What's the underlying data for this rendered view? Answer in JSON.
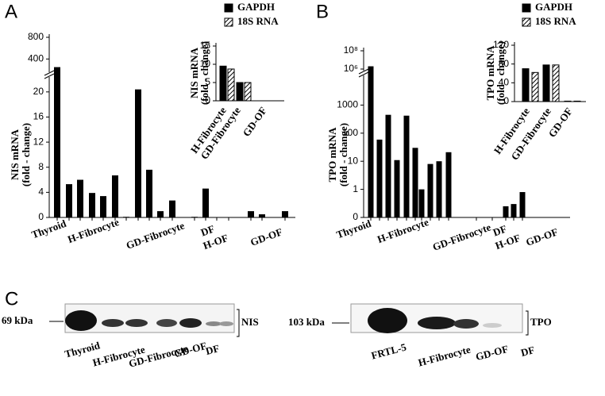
{
  "chart_data": [
    {
      "panel": "A",
      "type": "bar",
      "y_label": [
        "NIS mRNA",
        "(fold - change)"
      ],
      "groups": [
        "Thyroid",
        "H-Fibrocyte",
        "GD-Fibrocyte",
        "DF",
        "H-OF",
        "GD-OF"
      ],
      "color": "#000000",
      "values": [
        250,
        5.3,
        6,
        3.9,
        3.4,
        6.7,
        0.1,
        20.4,
        7.6,
        1,
        2.7,
        0.1,
        4.6,
        0,
        0,
        1,
        0.5,
        1
      ],
      "ylim": [
        0,
        800
      ],
      "axis_break": [
        22,
        200
      ],
      "yticks": [
        0,
        4,
        8,
        12,
        16,
        20,
        400,
        800
      ]
    },
    {
      "panel": null,
      "type": "bar",
      "y_label": [
        "NIS mRNA",
        "(fold - change)"
      ],
      "categories": [
        "H-Fibrocyte",
        "GD-Fibrocyte",
        "GD-OF"
      ],
      "series": [
        {
          "name": "GAPDH",
          "color": "#000000",
          "values": [
            9.5,
            5,
            0
          ]
        },
        {
          "name": "18S RNA",
          "color": "#000000",
          "hatched": true,
          "values": [
            8.7,
            5,
            0
          ]
        }
      ],
      "ylim": [
        0,
        15
      ],
      "yticks": [
        0,
        5,
        10,
        15
      ]
    },
    {
      "panel": "B",
      "type": "bar",
      "y_label": [
        "TPO mRNA",
        "(fold - change)"
      ],
      "log": true,
      "groups": [
        "Thyroid",
        "H-Fibrocyte",
        "GD-Fibrocyte",
        "DF",
        "H-OF",
        "GD-OF"
      ],
      "color": "#000000",
      "values": [
        2000000,
        59,
        450,
        11,
        420,
        30,
        1,
        8,
        10,
        21,
        0,
        0,
        0.25,
        0.3,
        0.8
      ],
      "ylim": [
        0,
        100000000
      ],
      "axis_break": [
        10000,
        1000000
      ],
      "yticks": [
        0,
        1,
        10,
        100,
        1000,
        {
          "value": 1000000,
          "label": "10⁶"
        },
        {
          "value": 100000000,
          "label": "10⁸"
        }
      ]
    },
    {
      "panel": null,
      "type": "bar",
      "y_label": [
        "TPO mRNA",
        "(fold - change)"
      ],
      "categories": [
        "H-Fibrocyte",
        "GD-Fibrocyte",
        "GD-OF"
      ],
      "series": [
        {
          "name": "GAPDH",
          "color": "#000000",
          "values": [
            70,
            78,
            1
          ]
        },
        {
          "name": "18S RNA",
          "color": "#000000",
          "hatched": true,
          "values": [
            62,
            78,
            1
          ]
        }
      ],
      "ylim": [
        0,
        120
      ],
      "yticks": [
        0,
        40,
        80,
        120
      ]
    }
  ],
  "blots": {
    "panel": "C",
    "left": {
      "marker": "69 kDa",
      "protein": "NIS",
      "lanes": [
        "Thyroid",
        "H-Fibrocyte",
        "GD-Fibrocyte",
        "GD-OF",
        "DF"
      ]
    },
    "right": {
      "marker": "103 kDa",
      "protein": "TPO",
      "lanes": [
        "FRTL-5",
        "H-Fibrocyte",
        "GD-OF",
        "DF"
      ]
    }
  }
}
